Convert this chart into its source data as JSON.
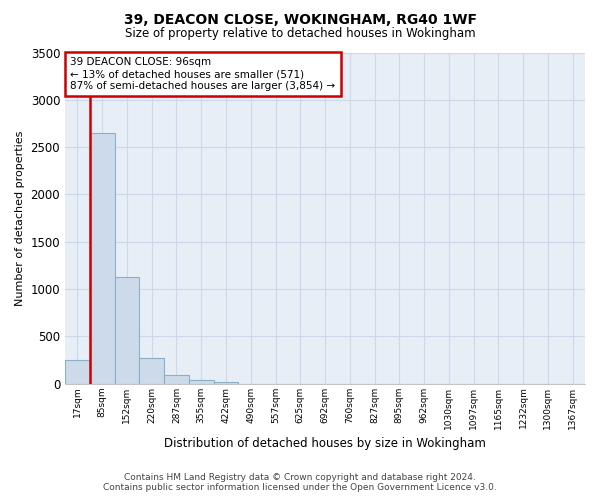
{
  "title1": "39, DEACON CLOSE, WOKINGHAM, RG40 1WF",
  "title2": "Size of property relative to detached houses in Wokingham",
  "xlabel": "Distribution of detached houses by size in Wokingham",
  "ylabel": "Number of detached properties",
  "bar_labels": [
    "17sqm",
    "85sqm",
    "152sqm",
    "220sqm",
    "287sqm",
    "355sqm",
    "422sqm",
    "490sqm",
    "557sqm",
    "625sqm",
    "692sqm",
    "760sqm",
    "827sqm",
    "895sqm",
    "962sqm",
    "1030sqm",
    "1097sqm",
    "1165sqm",
    "1232sqm",
    "1300sqm",
    "1367sqm"
  ],
  "bar_values": [
    250,
    2650,
    1130,
    270,
    90,
    45,
    15,
    0,
    0,
    0,
    0,
    0,
    0,
    0,
    0,
    0,
    0,
    0,
    0,
    0,
    0
  ],
  "bar_color": "#cddaea",
  "bar_edge_color": "#8aafc8",
  "annotation_line1": "39 DEACON CLOSE: 96sqm",
  "annotation_line2": "← 13% of detached houses are smaller (571)",
  "annotation_line3": "87% of semi-detached houses are larger (3,854) →",
  "property_line_x": 0.5,
  "ylim": [
    0,
    3500
  ],
  "yticks": [
    0,
    500,
    1000,
    1500,
    2000,
    2500,
    3000,
    3500
  ],
  "grid_color": "#cdd8e8",
  "background_color": "#e8eef6",
  "footer_line1": "Contains HM Land Registry data © Crown copyright and database right 2024.",
  "footer_line2": "Contains public sector information licensed under the Open Government Licence v3.0.",
  "red_line_color": "#cc0000",
  "annotation_box_facecolor": "#ffffff",
  "annotation_box_edgecolor": "#cc0000"
}
